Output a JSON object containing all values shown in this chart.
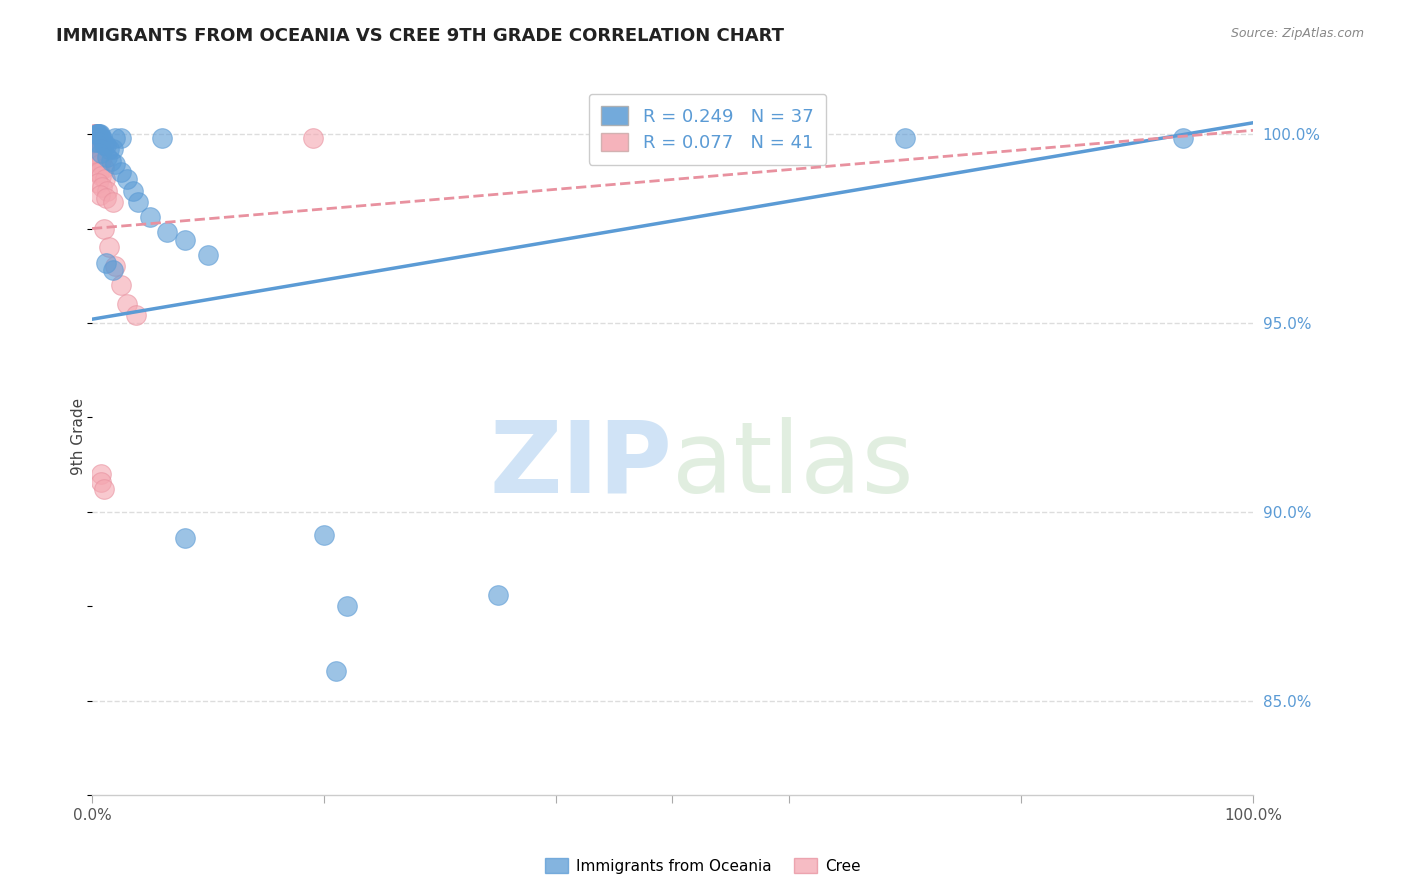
{
  "title": "IMMIGRANTS FROM OCEANIA VS CREE 9TH GRADE CORRELATION CHART",
  "source": "Source: ZipAtlas.com",
  "ylabel": "9th Grade",
  "ytick_labels": [
    "85.0%",
    "90.0%",
    "95.0%",
    "100.0%"
  ],
  "ytick_values": [
    0.85,
    0.9,
    0.95,
    1.0
  ],
  "xlim": [
    0.0,
    1.0
  ],
  "ylim": [
    0.825,
    1.015
  ],
  "legend_blue_r": "0.249",
  "legend_blue_n": "37",
  "legend_pink_r": "0.077",
  "legend_pink_n": "41",
  "legend_blue_label": "Immigrants from Oceania",
  "legend_pink_label": "Cree",
  "blue_color": "#5b9bd5",
  "pink_color": "#f4a6b0",
  "pink_line_color": "#e8919f",
  "blue_scatter": [
    [
      0.004,
      1.0
    ],
    [
      0.004,
      1.0
    ],
    [
      0.005,
      1.0
    ],
    [
      0.006,
      1.0
    ],
    [
      0.007,
      1.0
    ],
    [
      0.008,
      0.999
    ],
    [
      0.009,
      0.999
    ],
    [
      0.02,
      0.999
    ],
    [
      0.025,
      0.999
    ],
    [
      0.06,
      0.999
    ],
    [
      0.7,
      0.999
    ],
    [
      0.94,
      0.999
    ],
    [
      0.003,
      0.998
    ],
    [
      0.005,
      0.998
    ],
    [
      0.01,
      0.997
    ],
    [
      0.012,
      0.997
    ],
    [
      0.015,
      0.996
    ],
    [
      0.018,
      0.996
    ],
    [
      0.008,
      0.995
    ],
    [
      0.013,
      0.994
    ],
    [
      0.016,
      0.993
    ],
    [
      0.02,
      0.992
    ],
    [
      0.025,
      0.99
    ],
    [
      0.03,
      0.988
    ],
    [
      0.035,
      0.985
    ],
    [
      0.04,
      0.982
    ],
    [
      0.05,
      0.978
    ],
    [
      0.065,
      0.974
    ],
    [
      0.08,
      0.972
    ],
    [
      0.1,
      0.968
    ],
    [
      0.012,
      0.966
    ],
    [
      0.018,
      0.964
    ],
    [
      0.2,
      0.894
    ],
    [
      0.08,
      0.893
    ],
    [
      0.22,
      0.875
    ],
    [
      0.21,
      0.858
    ],
    [
      0.35,
      0.878
    ]
  ],
  "pink_scatter": [
    [
      0.002,
      1.0
    ],
    [
      0.003,
      1.0
    ],
    [
      0.004,
      1.0
    ],
    [
      0.003,
      0.999
    ],
    [
      0.005,
      0.999
    ],
    [
      0.19,
      0.999
    ],
    [
      0.002,
      0.998
    ],
    [
      0.004,
      0.998
    ],
    [
      0.006,
      0.998
    ],
    [
      0.001,
      0.997
    ],
    [
      0.003,
      0.997
    ],
    [
      0.005,
      0.997
    ],
    [
      0.007,
      0.996
    ],
    [
      0.008,
      0.996
    ],
    [
      0.002,
      0.995
    ],
    [
      0.004,
      0.995
    ],
    [
      0.006,
      0.995
    ],
    [
      0.009,
      0.994
    ],
    [
      0.003,
      0.993
    ],
    [
      0.005,
      0.993
    ],
    [
      0.007,
      0.992
    ],
    [
      0.01,
      0.991
    ],
    [
      0.004,
      0.99
    ],
    [
      0.006,
      0.99
    ],
    [
      0.008,
      0.989
    ],
    [
      0.011,
      0.988
    ],
    [
      0.005,
      0.987
    ],
    [
      0.009,
      0.986
    ],
    [
      0.013,
      0.985
    ],
    [
      0.007,
      0.984
    ],
    [
      0.012,
      0.983
    ],
    [
      0.018,
      0.982
    ],
    [
      0.01,
      0.975
    ],
    [
      0.015,
      0.97
    ],
    [
      0.02,
      0.965
    ],
    [
      0.025,
      0.96
    ],
    [
      0.03,
      0.955
    ],
    [
      0.038,
      0.952
    ],
    [
      0.008,
      0.91
    ],
    [
      0.008,
      0.908
    ],
    [
      0.01,
      0.906
    ]
  ],
  "blue_line": {
    "x0": 0.0,
    "x1": 1.0,
    "y0": 0.951,
    "y1": 1.003
  },
  "pink_line": {
    "x0": 0.0,
    "x1": 1.0,
    "y0": 0.975,
    "y1": 1.001
  },
  "watermark_zip": "ZIP",
  "watermark_atlas": "atlas",
  "background_color": "#ffffff",
  "grid_color": "#dddddd"
}
